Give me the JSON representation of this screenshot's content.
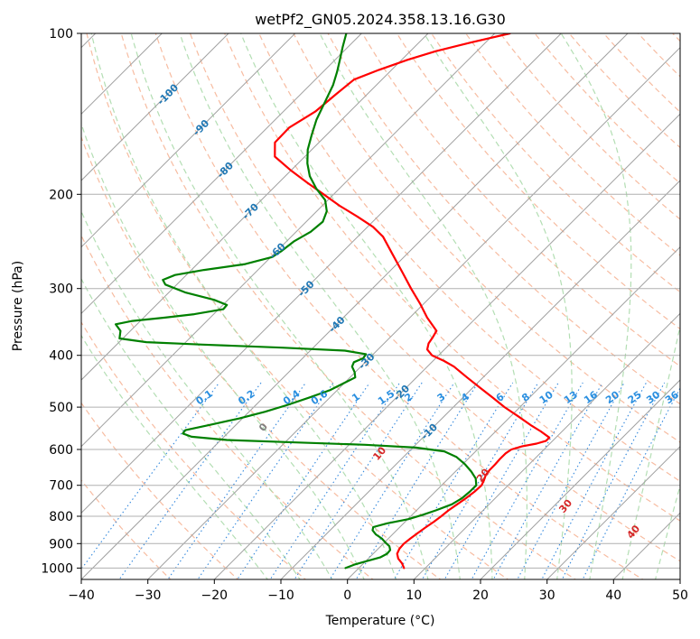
{
  "chart_data": {
    "type": "line",
    "subtype": "skew-T log-P diagram",
    "title": "wetPf2_GN05.2024.358.13.16.G30",
    "xlabel": "Temperature (°C)",
    "ylabel": "Pressure (hPa)",
    "xlim": [
      -40,
      50
    ],
    "ylim": [
      1050,
      100
    ],
    "y_scale": "log",
    "x_ticks": [
      "−40",
      "−30",
      "−20",
      "−10",
      "0",
      "10",
      "20",
      "30",
      "40",
      "50"
    ],
    "y_ticks": [
      {
        "p": 100,
        "label": "100"
      },
      {
        "p": 200,
        "label": "200"
      },
      {
        "p": 300,
        "label": "300"
      },
      {
        "p": 400,
        "label": "400"
      },
      {
        "p": 500,
        "label": "500"
      },
      {
        "p": 600,
        "label": "600"
      },
      {
        "p": 700,
        "label": "700"
      },
      {
        "p": 800,
        "label": "800"
      },
      {
        "p": 900,
        "label": "900"
      },
      {
        "p": 1000,
        "label": "1000"
      }
    ],
    "grid": true,
    "colors": {
      "temperature": "#ff0000",
      "dewpoint": "#008000",
      "isotherm": "#a0a0a0",
      "dry_adiabat": "#f4a582",
      "moist_adiabat": "#a6d8a6",
      "mixing_ratio": "#3388dd",
      "isotherm_label": "#1f77b4",
      "mixing_ratio_label": "#2a8fe0",
      "moist_label": "#d62728",
      "moist_label_zero": "#808080"
    },
    "isotherm_labels": [
      "-100",
      "-90",
      "-80",
      "-70",
      "-60",
      "-50",
      "-40",
      "-30",
      "-20",
      "-10"
    ],
    "mixing_ratio_labels": [
      "0.1",
      "0.2",
      "0.4",
      "0.6",
      "1",
      "1.5",
      "2",
      "3",
      "4",
      "6",
      "8",
      "10",
      "13",
      "16",
      "20",
      "25",
      "30",
      "36"
    ],
    "moist_adiabat_labels": [
      "0",
      "10",
      "20",
      "30",
      "40"
    ],
    "series": [
      {
        "key": "temperature",
        "points": [
          {
            "p": 1000,
            "t": 6.8
          },
          {
            "p": 980,
            "t": 5.8
          },
          {
            "p": 960,
            "t": 4.5
          },
          {
            "p": 940,
            "t": 3.6
          },
          {
            "p": 920,
            "t": 3.2
          },
          {
            "p": 900,
            "t": 3.1
          },
          {
            "p": 880,
            "t": 3.3
          },
          {
            "p": 860,
            "t": 3.6
          },
          {
            "p": 840,
            "t": 3.9
          },
          {
            "p": 820,
            "t": 4.3
          },
          {
            "p": 800,
            "t": 4.6
          },
          {
            "p": 780,
            "t": 4.8
          },
          {
            "p": 760,
            "t": 5.2
          },
          {
            "p": 740,
            "t": 5.6
          },
          {
            "p": 720,
            "t": 5.9
          },
          {
            "p": 700,
            "t": 6.0
          },
          {
            "p": 685,
            "t": 5.6
          },
          {
            "p": 670,
            "t": 5.1
          },
          {
            "p": 655,
            "t": 4.9
          },
          {
            "p": 640,
            "t": 4.9
          },
          {
            "p": 625,
            "t": 4.8
          },
          {
            "p": 610,
            "t": 4.8
          },
          {
            "p": 600,
            "t": 5.1
          },
          {
            "p": 592,
            "t": 6.2
          },
          {
            "p": 585,
            "t": 8.0
          },
          {
            "p": 578,
            "t": 9.0
          },
          {
            "p": 570,
            "t": 9.0
          },
          {
            "p": 555,
            "t": 6.8
          },
          {
            "p": 540,
            "t": 4.3
          },
          {
            "p": 520,
            "t": 1.1
          },
          {
            "p": 500,
            "t": -2.3
          },
          {
            "p": 480,
            "t": -5.5
          },
          {
            "p": 460,
            "t": -8.9
          },
          {
            "p": 440,
            "t": -12.4
          },
          {
            "p": 420,
            "t": -16.0
          },
          {
            "p": 410,
            "t": -18.3
          },
          {
            "p": 400,
            "t": -21.0
          },
          {
            "p": 390,
            "t": -22.6
          },
          {
            "p": 380,
            "t": -23.3
          },
          {
            "p": 370,
            "t": -23.6
          },
          {
            "p": 360,
            "t": -24.0
          },
          {
            "p": 340,
            "t": -27.4
          },
          {
            "p": 320,
            "t": -30.6
          },
          {
            "p": 300,
            "t": -34.2
          },
          {
            "p": 280,
            "t": -37.9
          },
          {
            "p": 260,
            "t": -41.9
          },
          {
            "p": 240,
            "t": -46.2
          },
          {
            "p": 230,
            "t": -49.2
          },
          {
            "p": 220,
            "t": -53.1
          },
          {
            "p": 210,
            "t": -57.4
          },
          {
            "p": 200,
            "t": -61.5
          },
          {
            "p": 190,
            "t": -65.8
          },
          {
            "p": 180,
            "t": -70.2
          },
          {
            "p": 170,
            "t": -74.5
          },
          {
            "p": 160,
            "t": -76.6
          },
          {
            "p": 150,
            "t": -76.7
          },
          {
            "p": 140,
            "t": -75.2
          },
          {
            "p": 130,
            "t": -74.7
          },
          {
            "p": 122,
            "t": -74.2
          },
          {
            "p": 117,
            "t": -71.9
          },
          {
            "p": 112,
            "t": -69.1
          },
          {
            "p": 108,
            "t": -66.2
          },
          {
            "p": 104,
            "t": -62.2
          },
          {
            "p": 100,
            "t": -57.7
          }
        ]
      },
      {
        "key": "dewpoint",
        "points": [
          {
            "p": 1000,
            "t": -2.0
          },
          {
            "p": 985,
            "t": -1.2
          },
          {
            "p": 970,
            "t": 0.2
          },
          {
            "p": 955,
            "t": 1.6
          },
          {
            "p": 940,
            "t": 2.1
          },
          {
            "p": 925,
            "t": 2.0
          },
          {
            "p": 910,
            "t": 1.3
          },
          {
            "p": 895,
            "t": 0.1
          },
          {
            "p": 880,
            "t": -1.0
          },
          {
            "p": 865,
            "t": -2.5
          },
          {
            "p": 850,
            "t": -3.6
          },
          {
            "p": 838,
            "t": -4.0
          },
          {
            "p": 825,
            "t": -2.5
          },
          {
            "p": 810,
            "t": 0.1
          },
          {
            "p": 795,
            "t": 1.6
          },
          {
            "p": 780,
            "t": 2.9
          },
          {
            "p": 760,
            "t": 4.4
          },
          {
            "p": 740,
            "t": 5.0
          },
          {
            "p": 720,
            "t": 5.2
          },
          {
            "p": 700,
            "t": 5.2
          },
          {
            "p": 680,
            "t": 4.1
          },
          {
            "p": 660,
            "t": 2.4
          },
          {
            "p": 640,
            "t": 0.4
          },
          {
            "p": 620,
            "t": -2.0
          },
          {
            "p": 605,
            "t": -4.7
          },
          {
            "p": 595,
            "t": -9.6
          },
          {
            "p": 588,
            "t": -17.6
          },
          {
            "p": 582,
            "t": -28.4
          },
          {
            "p": 576,
            "t": -39.1
          },
          {
            "p": 568,
            "t": -44.9
          },
          {
            "p": 560,
            "t": -46.7
          },
          {
            "p": 552,
            "t": -46.8
          },
          {
            "p": 540,
            "t": -44.0
          },
          {
            "p": 525,
            "t": -40.5
          },
          {
            "p": 510,
            "t": -37.6
          },
          {
            "p": 495,
            "t": -35.2
          },
          {
            "p": 480,
            "t": -33.1
          },
          {
            "p": 465,
            "t": -31.1
          },
          {
            "p": 450,
            "t": -30.0
          },
          {
            "p": 440,
            "t": -29.2
          },
          {
            "p": 430,
            "t": -30.1
          },
          {
            "p": 420,
            "t": -31.3
          },
          {
            "p": 412,
            "t": -31.7
          },
          {
            "p": 405,
            "t": -30.9
          },
          {
            "p": 398,
            "t": -31.1
          },
          {
            "p": 392,
            "t": -34.8
          },
          {
            "p": 387,
            "t": -44.7
          },
          {
            "p": 382,
            "t": -57.1
          },
          {
            "p": 378,
            "t": -65.9
          },
          {
            "p": 372,
            "t": -70.5
          },
          {
            "p": 360,
            "t": -71.5
          },
          {
            "p": 350,
            "t": -73.2
          },
          {
            "p": 345,
            "t": -71.2
          },
          {
            "p": 340,
            "t": -66.8
          },
          {
            "p": 335,
            "t": -62.9
          },
          {
            "p": 328,
            "t": -59.3
          },
          {
            "p": 322,
            "t": -59.4
          },
          {
            "p": 315,
            "t": -62.1
          },
          {
            "p": 305,
            "t": -67.6
          },
          {
            "p": 295,
            "t": -71.7
          },
          {
            "p": 289,
            "t": -72.8
          },
          {
            "p": 283,
            "t": -71.7
          },
          {
            "p": 277,
            "t": -68.1
          },
          {
            "p": 270,
            "t": -62.8
          },
          {
            "p": 262,
            "t": -59.8
          },
          {
            "p": 255,
            "t": -59.3
          },
          {
            "p": 245,
            "t": -58.9
          },
          {
            "p": 235,
            "t": -57.8
          },
          {
            "p": 225,
            "t": -57.5
          },
          {
            "p": 215,
            "t": -58.5
          },
          {
            "p": 205,
            "t": -60.4
          },
          {
            "p": 195,
            "t": -63.5
          },
          {
            "p": 185,
            "t": -66.3
          },
          {
            "p": 175,
            "t": -68.6
          },
          {
            "p": 165,
            "t": -70.6
          },
          {
            "p": 155,
            "t": -72.2
          },
          {
            "p": 145,
            "t": -73.8
          },
          {
            "p": 135,
            "t": -75.1
          },
          {
            "p": 125,
            "t": -76.5
          },
          {
            "p": 118,
            "t": -77.9
          },
          {
            "p": 112,
            "t": -79.3
          },
          {
            "p": 106,
            "t": -80.8
          },
          {
            "p": 100,
            "t": -82.3
          }
        ]
      }
    ]
  }
}
